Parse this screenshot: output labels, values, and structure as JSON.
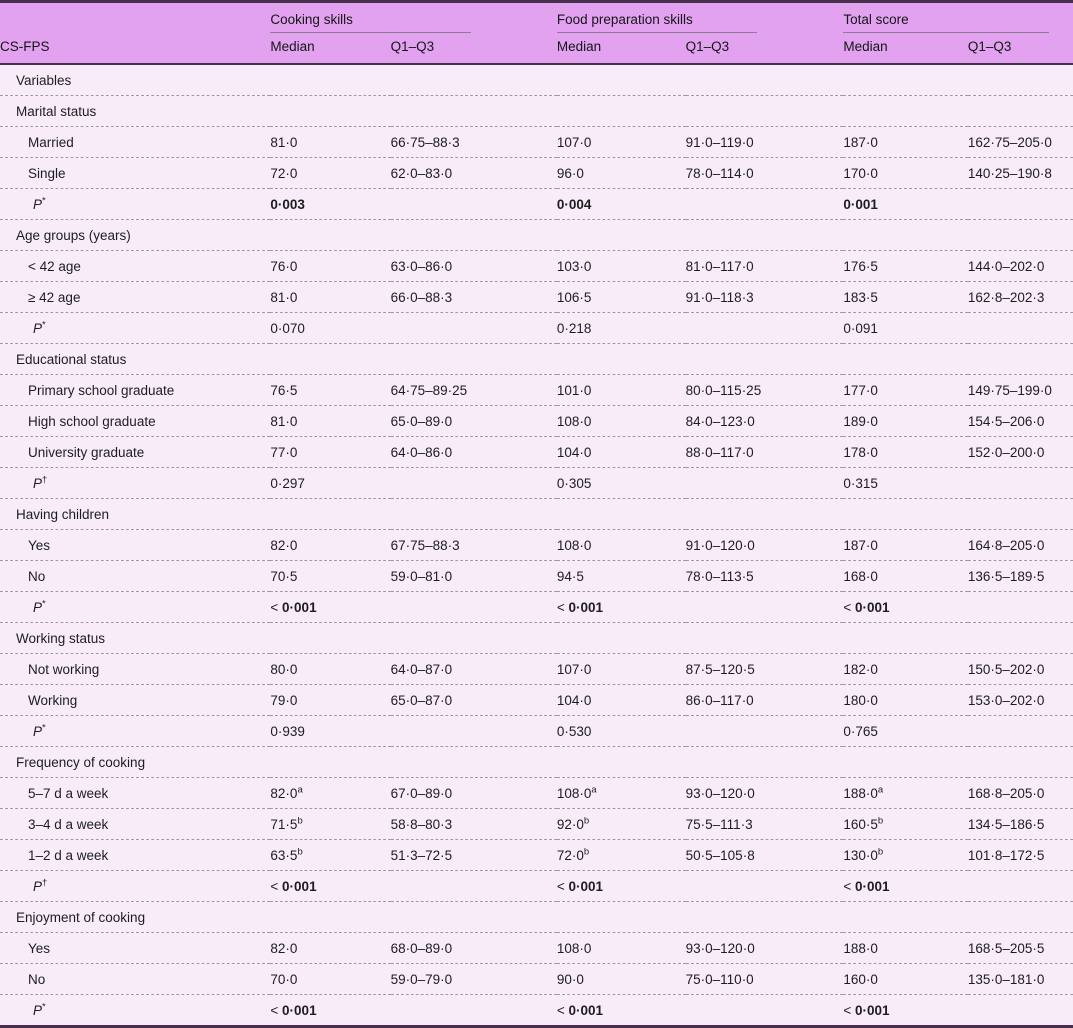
{
  "header": {
    "row_label": "CS-FPS",
    "groups": [
      {
        "label": "Cooking skills",
        "cols": [
          "Median",
          "Q1–Q3"
        ]
      },
      {
        "label": "Food preparation skills",
        "cols": [
          "Median",
          "Q1–Q3"
        ]
      },
      {
        "label": "Total score",
        "cols": [
          "Median",
          "Q1–Q3"
        ]
      }
    ]
  },
  "rows": [
    {
      "t": "s",
      "label": "Variables"
    },
    {
      "t": "s",
      "label": "Marital status"
    },
    {
      "t": "d",
      "label": "Married",
      "cells": [
        "81·0",
        "66·75–88·3",
        "107·0",
        "91·0–119·0",
        "187·0",
        "162·75–205·0"
      ]
    },
    {
      "t": "d",
      "label": "Single",
      "cells": [
        "72·0",
        "62·0–83·0",
        "96·0",
        "78·0–114·0",
        "170·0",
        "140·25–190·8"
      ]
    },
    {
      "t": "p",
      "label": "P",
      "sup": "*",
      "bold": true,
      "cells": [
        "0·003",
        "0·004",
        "0·001"
      ]
    },
    {
      "t": "s",
      "label": "Age groups (years)"
    },
    {
      "t": "d",
      "label": "< 42 age",
      "cells": [
        "76·0",
        "63·0–86·0",
        "103·0",
        "81·0–117·0",
        "176·5",
        "144·0–202·0"
      ]
    },
    {
      "t": "d",
      "label": "≥ 42 age",
      "cells": [
        "81·0",
        "66·0–88·3",
        "106·5",
        "91·0–118·3",
        "183·5",
        "162·8–202·3"
      ]
    },
    {
      "t": "p",
      "label": "P",
      "sup": "*",
      "bold": false,
      "cells": [
        "0·070",
        "0·218",
        "0·091"
      ]
    },
    {
      "t": "s",
      "label": "Educational status"
    },
    {
      "t": "d",
      "label": "Primary school graduate",
      "cells": [
        "76·5",
        "64·75–89·25",
        "101·0",
        "80·0–115·25",
        "177·0",
        "149·75–199·0"
      ]
    },
    {
      "t": "d",
      "label": "High school graduate",
      "cells": [
        "81·0",
        "65·0–89·0",
        "108·0",
        "84·0–123·0",
        "189·0",
        "154·5–206·0"
      ]
    },
    {
      "t": "d",
      "label": "University graduate",
      "cells": [
        "77·0",
        "64·0–86·0",
        "104·0",
        "88·0–117·0",
        "178·0",
        "152·0–200·0"
      ]
    },
    {
      "t": "p",
      "label": "P",
      "sup": "†",
      "bold": false,
      "cells": [
        "0·297",
        "0·305",
        "0·315"
      ]
    },
    {
      "t": "s",
      "label": "Having children"
    },
    {
      "t": "d",
      "label": "Yes",
      "cells": [
        "82·0",
        "67·75–88·3",
        "108·0",
        "91·0–120·0",
        "187·0",
        "164·8–205·0"
      ]
    },
    {
      "t": "d",
      "label": "No",
      "cells": [
        "70·5",
        "59·0–81·0",
        "94·5",
        "78·0–113·5",
        "168·0",
        "136·5–189·5"
      ]
    },
    {
      "t": "p",
      "label": "P",
      "sup": "*",
      "bold": true,
      "cells": [
        "< 0·001",
        "< 0·001",
        "< 0·001"
      ]
    },
    {
      "t": "s",
      "label": "Working status"
    },
    {
      "t": "d",
      "label": "Not working",
      "cells": [
        "80·0",
        "64·0–87·0",
        "107·0",
        "87·5–120·5",
        "182·0",
        "150·5–202·0"
      ]
    },
    {
      "t": "d",
      "label": "Working",
      "cells": [
        "79·0",
        "65·0–87·0",
        "104·0",
        "86·0–117·0",
        "180·0",
        "153·0–202·0"
      ]
    },
    {
      "t": "p",
      "label": "P",
      "sup": "*",
      "bold": false,
      "cells": [
        "0·939",
        "0·530",
        "0·765"
      ]
    },
    {
      "t": "s",
      "label": "Frequency of cooking"
    },
    {
      "t": "d",
      "label": "5–7 d a week",
      "cells": [
        "82·0^a",
        "67·0–89·0",
        "108·0^a",
        "93·0–120·0",
        "188·0^a",
        "168·8–205·0"
      ]
    },
    {
      "t": "d",
      "label": "3–4 d a week",
      "cells": [
        "71·5^b",
        "58·8–80·3",
        "92·0^b",
        "75·5–111·3",
        "160·5^b",
        "134·5–186·5"
      ]
    },
    {
      "t": "d",
      "label": "1–2 d a week",
      "cells": [
        "63·5^b",
        "51·3–72·5",
        "72·0^b",
        "50·5–105·8",
        "130·0^b",
        "101·8–172·5"
      ]
    },
    {
      "t": "p",
      "label": "P",
      "sup": "†",
      "bold": true,
      "cells": [
        "< 0·001",
        "< 0·001",
        "< 0·001"
      ]
    },
    {
      "t": "s",
      "label": "Enjoyment of cooking"
    },
    {
      "t": "d",
      "label": "Yes",
      "cells": [
        "82·0",
        "68·0–89·0",
        "108·0",
        "93·0–120·0",
        "188·0",
        "168·5–205·5"
      ]
    },
    {
      "t": "d",
      "label": "No",
      "cells": [
        "70·0",
        "59·0–79·0",
        "90·0",
        "75·0–110·0",
        "160·0",
        "135·0–181·0"
      ]
    },
    {
      "t": "p",
      "label": "P",
      "sup": "*",
      "bold": true,
      "cells": [
        "< 0·001",
        "< 0·001",
        "< 0·001"
      ]
    }
  ],
  "colors": {
    "header_pink": "#e2a2f0",
    "body_pink": "#f8ecf9",
    "rule_dark": "#46304c",
    "separator": "#a298a3"
  }
}
